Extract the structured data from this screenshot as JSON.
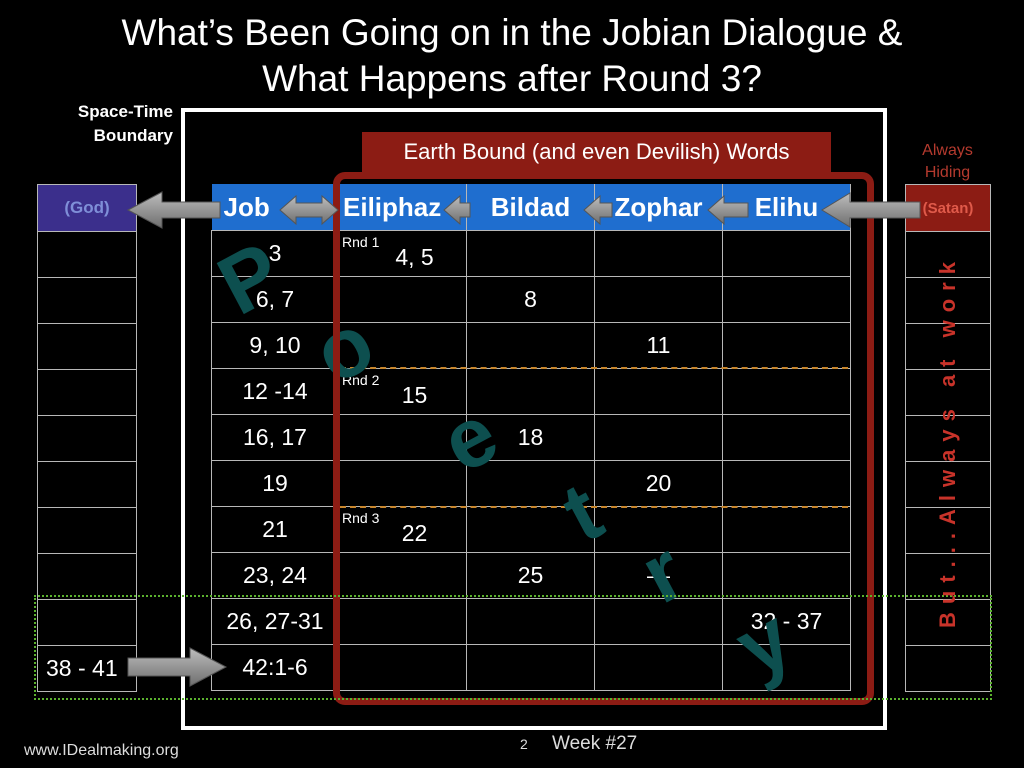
{
  "title": {
    "line1": "What’s Been Going on in the Jobian Dialogue &",
    "line2": "What Happens after Round 3?"
  },
  "space_time_label": [
    "Space-Time",
    "Boundary"
  ],
  "always_hiding": [
    "Always",
    "Hiding"
  ],
  "banner": "Earth Bound (and even Devilish) Words",
  "columns": {
    "god": "(God)",
    "job": "Job",
    "eliphaz": "Eiliphaz",
    "bildad": "Bildad",
    "zophar": "Zophar",
    "elihu": "Elihu",
    "satan": "(Satan)"
  },
  "rounds": {
    "r1": "Rnd 1",
    "r2": "Rnd 2",
    "r3": "Rnd 3"
  },
  "rows": {
    "job": [
      "3",
      "6, 7",
      "9, 10",
      "12 -14",
      "16, 17",
      "19",
      "21",
      "23, 24",
      "26, 27-31",
      "42:1-6"
    ],
    "eliphaz": [
      "4, 5",
      "",
      "",
      "15",
      "",
      "",
      "22",
      "",
      "",
      ""
    ],
    "bildad": [
      "",
      "8",
      "",
      "",
      "18",
      "",
      "",
      "25",
      "",
      ""
    ],
    "zophar": [
      "",
      "",
      "11",
      "",
      "",
      "20",
      "",
      "—",
      "",
      ""
    ],
    "elihu": [
      "",
      "",
      "",
      "",
      "",
      "",
      "",
      "",
      "32 - 37",
      ""
    ],
    "god": [
      "",
      "",
      "",
      "",
      "",
      "",
      "",
      "",
      "",
      "38 - 41"
    ]
  },
  "poetry_letters": [
    "P",
    "o",
    "e",
    "t",
    "r",
    "y"
  ],
  "vertical_text": "But...Always at work",
  "footer": {
    "site": "www.IDealmaking.org",
    "page": "2",
    "week": "Week #27"
  },
  "colors": {
    "banner": "#8c1c14",
    "header_blue": "#1f6ecf",
    "god_purple": "#3b2f8c",
    "satan_red": "#8c1c14",
    "poetry": "#0d4f4f",
    "green_dotted": "#5bb12e"
  }
}
